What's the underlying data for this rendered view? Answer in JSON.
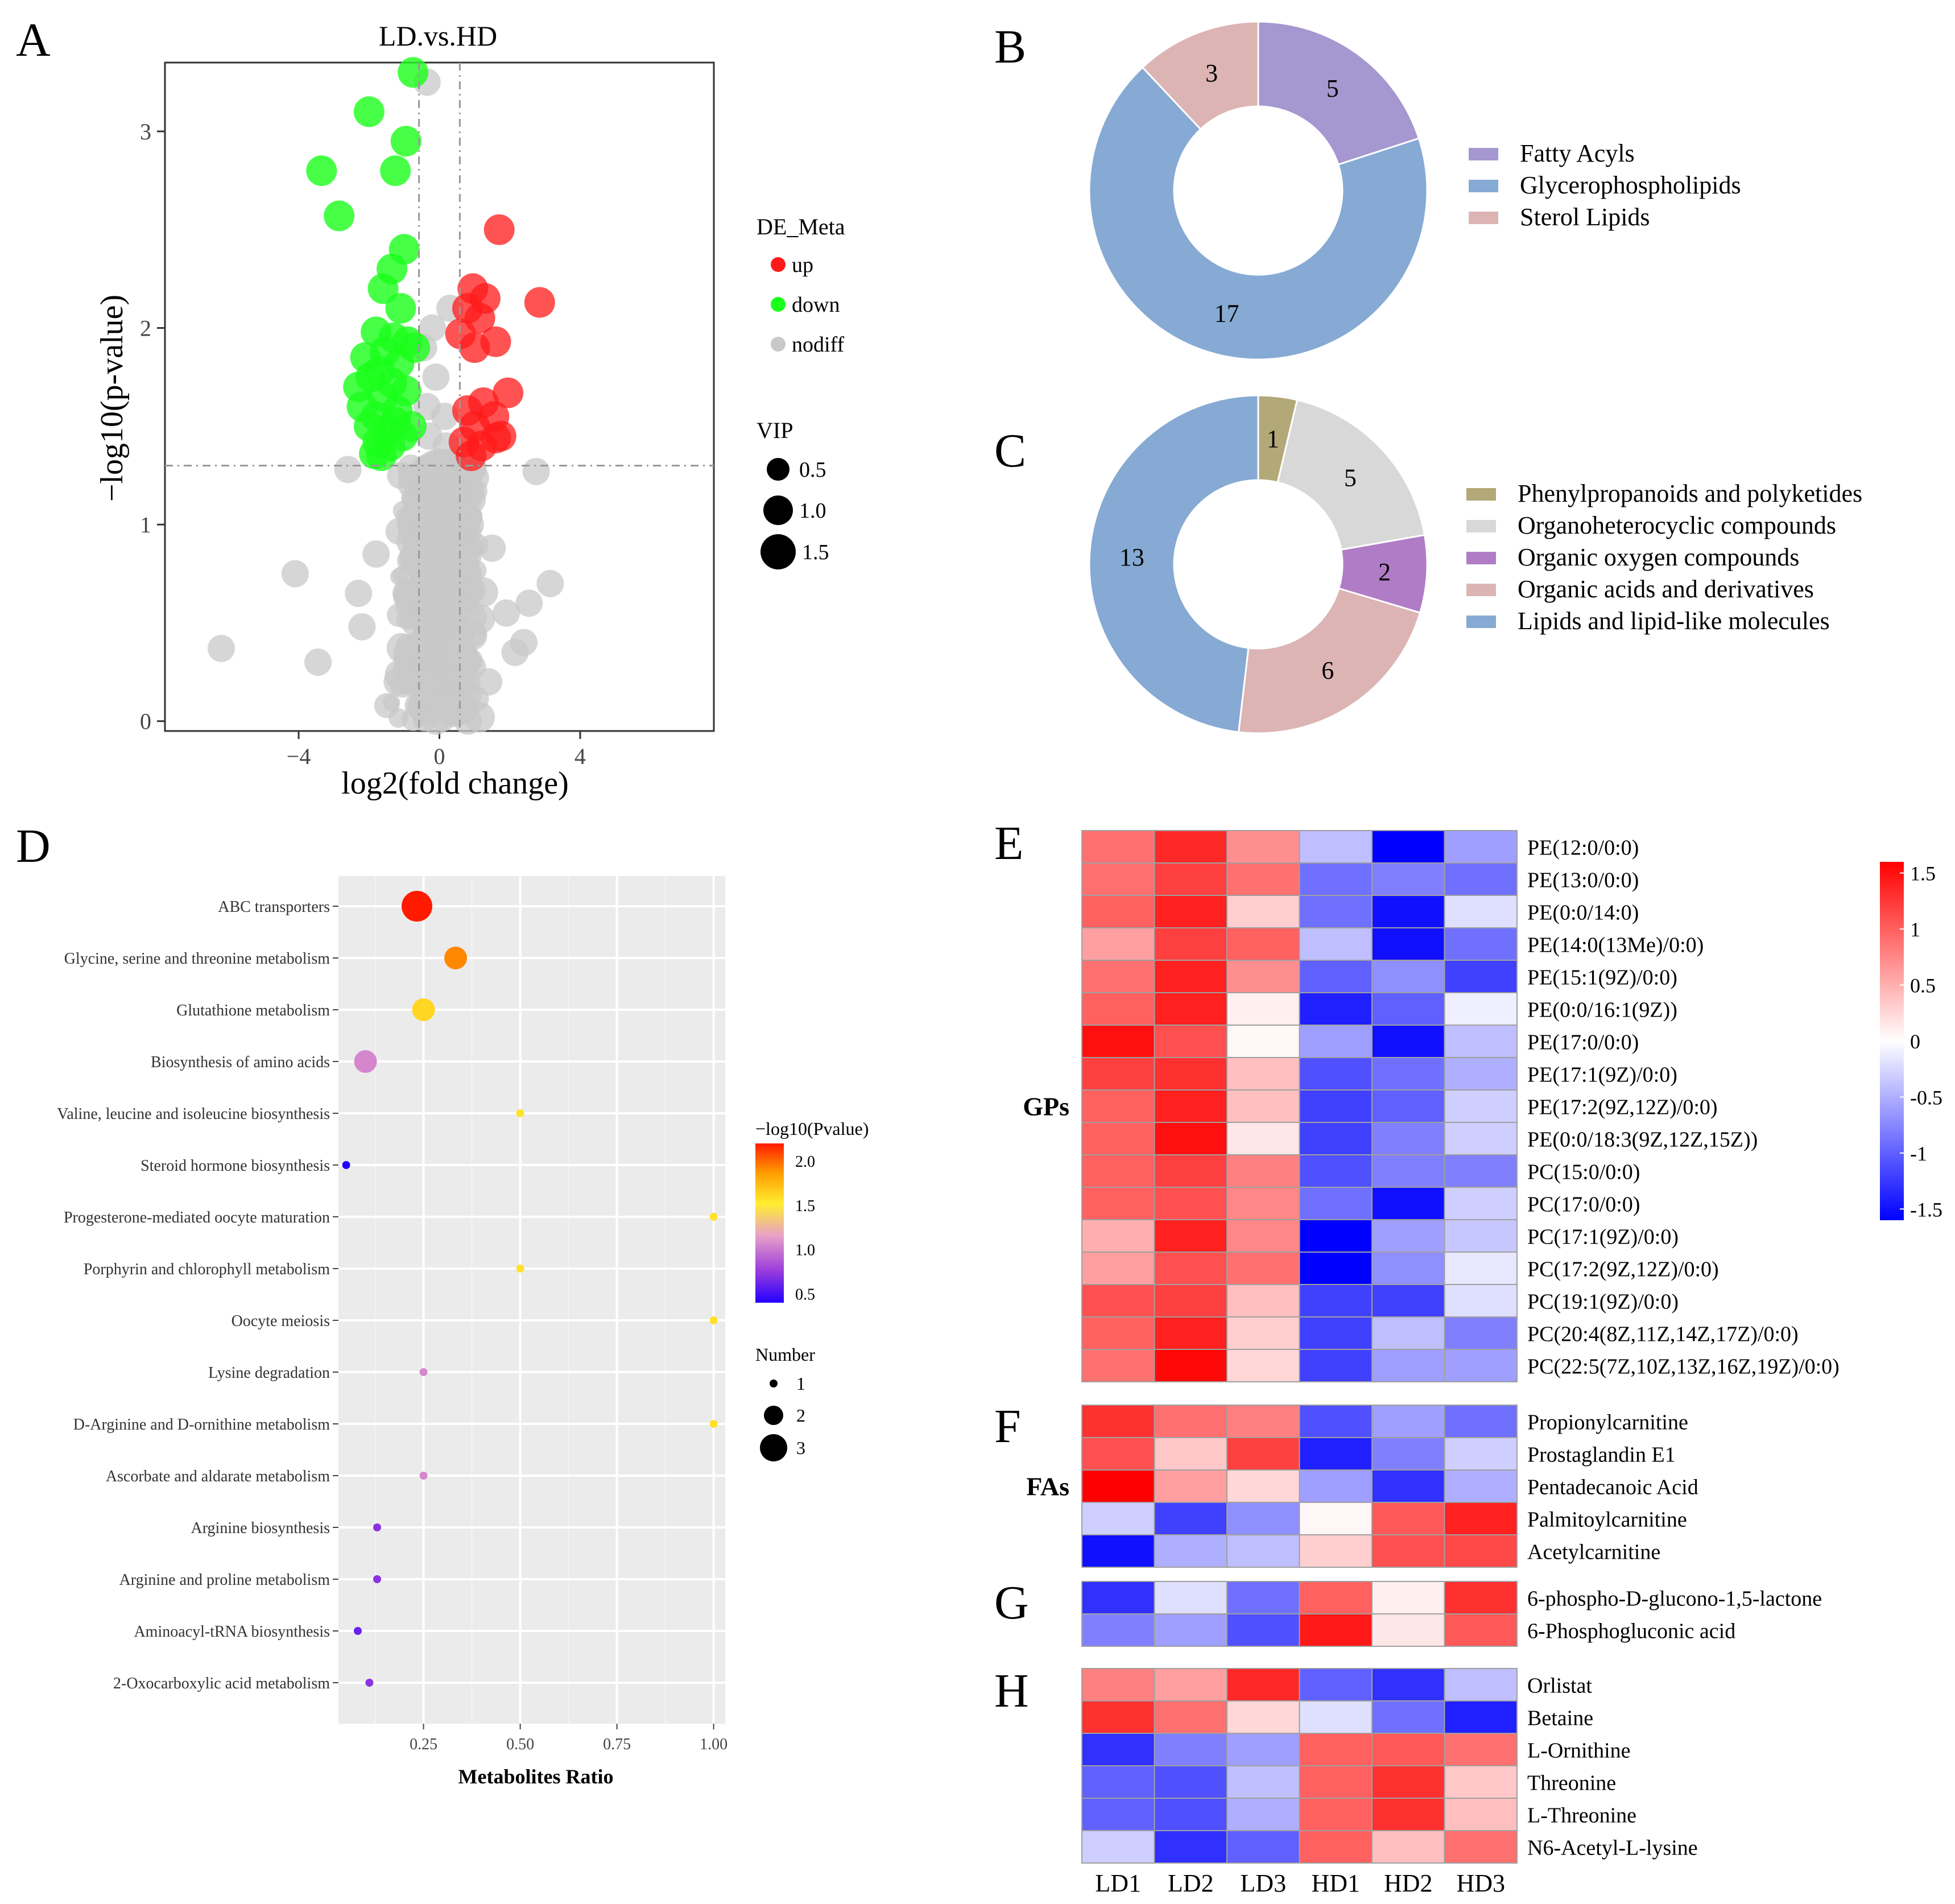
{
  "colors": {
    "up": "#ff1a1a",
    "down": "#1aff1a",
    "nodiff": "#c8c8c8",
    "fatty": "#a597cf",
    "glycero": "#86aad3",
    "sterol": "#dcb4b4",
    "phenyl": "#b3a878",
    "organohetero": "#d8d8d8",
    "oxygen": "#b07cc6",
    "acids": "#dcb4b4",
    "lipids": "#86aad3"
  },
  "panel_labels": [
    "A",
    "B",
    "C",
    "D",
    "E",
    "F",
    "G",
    "H"
  ],
  "chart_data": [
    {
      "id": "A",
      "type": "scatter",
      "title": "LD.vs.HD",
      "xlabel": "log2(fold change)",
      "ylabel": "−log10(p-value)",
      "xlim": [
        -7.8,
        7.8
      ],
      "ylim": [
        -0.05,
        3.35
      ],
      "xticks": [
        -4,
        0,
        4
      ],
      "xtick_labels": [
        "−4",
        "0",
        "4"
      ],
      "yticks": [
        0,
        1,
        2,
        3
      ],
      "ytick_labels": [
        "0",
        "1",
        "2",
        "3"
      ],
      "threshold_x": [
        -0.58,
        0.58
      ],
      "threshold_y": 1.3,
      "legend_title": "DE_Meta",
      "legend": [
        "up",
        "down",
        "nodiff"
      ],
      "size_title": "VIP",
      "size_labels": [
        "0.5",
        "1.0",
        "1.5"
      ],
      "down_points": [
        [
          -0.75,
          3.3
        ],
        [
          -2.0,
          3.1
        ],
        [
          -0.95,
          2.95
        ],
        [
          -3.35,
          2.8
        ],
        [
          -1.25,
          2.8
        ],
        [
          -2.85,
          2.57
        ],
        [
          -1.0,
          2.4
        ],
        [
          -1.35,
          2.3
        ],
        [
          -1.6,
          2.2
        ],
        [
          -1.1,
          2.1
        ],
        [
          -1.8,
          1.98
        ],
        [
          -1.3,
          1.95
        ],
        [
          -0.9,
          1.93
        ],
        [
          -1.55,
          1.88
        ],
        [
          -2.1,
          1.85
        ],
        [
          -1.15,
          1.82
        ],
        [
          -1.7,
          1.78
        ],
        [
          -1.95,
          1.75
        ],
        [
          -1.35,
          1.72
        ],
        [
          -0.95,
          1.68
        ],
        [
          -1.6,
          1.65
        ],
        [
          -2.2,
          1.6
        ],
        [
          -1.2,
          1.58
        ],
        [
          -1.8,
          1.55
        ],
        [
          -2.0,
          1.5
        ],
        [
          -1.5,
          1.48
        ],
        [
          -1.05,
          1.45
        ],
        [
          -1.75,
          1.42
        ],
        [
          -1.4,
          1.4
        ],
        [
          -1.85,
          1.36
        ],
        [
          -0.8,
          1.5
        ],
        [
          -0.7,
          1.9
        ],
        [
          -2.3,
          1.7
        ],
        [
          -1.65,
          1.35
        ],
        [
          -1.25,
          1.52
        ]
      ],
      "up_points": [
        [
          1.7,
          2.5
        ],
        [
          2.85,
          2.13
        ],
        [
          0.95,
          2.2
        ],
        [
          1.3,
          2.15
        ],
        [
          0.8,
          2.1
        ],
        [
          1.15,
          2.05
        ],
        [
          1.6,
          1.93
        ],
        [
          0.6,
          1.97
        ],
        [
          1.0,
          1.9
        ],
        [
          1.95,
          1.67
        ],
        [
          1.25,
          1.62
        ],
        [
          0.8,
          1.58
        ],
        [
          1.55,
          1.55
        ],
        [
          1.0,
          1.5
        ],
        [
          1.75,
          1.45
        ],
        [
          0.7,
          1.42
        ],
        [
          1.2,
          1.4
        ],
        [
          0.9,
          1.35
        ],
        [
          1.6,
          1.44
        ]
      ],
      "nodiff_points": [
        [
          -0.35,
          3.25
        ],
        [
          -0.2,
          2.0
        ],
        [
          -0.45,
          1.9
        ],
        [
          0.3,
          2.1
        ],
        [
          -0.35,
          1.6
        ],
        [
          -0.1,
          1.75
        ],
        [
          0.15,
          1.55
        ],
        [
          -0.3,
          1.45
        ],
        [
          0.2,
          1.4
        ],
        [
          -2.6,
          1.28
        ],
        [
          -1.1,
          1.25
        ],
        [
          0.9,
          1.27
        ],
        [
          2.75,
          1.27
        ],
        [
          -4.1,
          0.75
        ],
        [
          3.15,
          0.7
        ],
        [
          -6.2,
          0.37
        ],
        [
          -3.45,
          0.3
        ],
        [
          2.4,
          0.4
        ],
        [
          2.15,
          0.35
        ],
        [
          -2.2,
          0.48
        ],
        [
          1.9,
          0.55
        ],
        [
          -2.3,
          0.65
        ],
        [
          -1.8,
          0.85
        ],
        [
          1.5,
          0.88
        ],
        [
          2.55,
          0.6
        ],
        [
          1.4,
          0.2
        ],
        [
          -1.2,
          0.2
        ],
        [
          0.6,
          0.05
        ],
        [
          -0.6,
          0.08
        ]
      ]
    },
    {
      "id": "B",
      "type": "pie",
      "labels": [
        "Fatty Acyls",
        "Glycerophospholipids",
        "Sterol Lipids"
      ],
      "values": [
        5,
        17,
        3
      ]
    },
    {
      "id": "C",
      "type": "pie",
      "labels": [
        "Phenylpropanoids and polyketides",
        "Organoheterocyclic compounds",
        "Organic oxygen compounds",
        "Organic acids and derivatives",
        "Lipids and lipid-like molecules"
      ],
      "values": [
        1,
        5,
        2,
        6,
        13
      ]
    },
    {
      "id": "D",
      "type": "scatter",
      "xlabel": "Metabolites Ratio",
      "xlim": [
        0.03,
        1.03
      ],
      "xticks": [
        0.25,
        0.5,
        0.75,
        1.0
      ],
      "xtick_labels": [
        "0.25",
        "0.50",
        "0.75",
        "1.00"
      ],
      "color_title": "−log10(Pvalue)",
      "color_labels": [
        "2.0",
        "1.5",
        "1.0",
        "0.5"
      ],
      "color_range": [
        0.4,
        2.2
      ],
      "size_title": "Number",
      "size_labels": [
        "1",
        "2",
        "3"
      ],
      "pathways": [
        "ABC transporters",
        "Glycine, serine and threonine metabolism",
        "Glutathione metabolism",
        "Biosynthesis of amino acids",
        "Valine, leucine and isoleucine biosynthesis",
        "Steroid hormone biosynthesis",
        "Progesterone-mediated oocyte maturation",
        "Porphyrin and chlorophyll metabolism",
        "Oocyte meiosis",
        "Lysine degradation",
        "D-Arginine and D-ornithine metabolism",
        "Ascorbate and aldarate metabolism",
        "Arginine biosynthesis",
        "Arginine and proline metabolism",
        "Aminoacyl-tRNA biosynthesis",
        "2-Oxocarboxylic acid metabolism"
      ],
      "ratio": [
        0.233,
        0.333,
        0.25,
        0.1,
        0.5,
        0.05,
        1.0,
        0.5,
        1.0,
        0.25,
        1.0,
        0.25,
        0.13,
        0.13,
        0.08,
        0.11
      ],
      "neglog10p": [
        2.2,
        1.9,
        1.6,
        1.05,
        1.55,
        0.4,
        1.55,
        1.55,
        1.55,
        1.05,
        1.55,
        1.05,
        0.7,
        0.7,
        0.6,
        0.7
      ],
      "number": [
        3,
        2,
        2,
        2,
        1,
        1,
        1,
        1,
        1,
        1,
        1,
        1,
        1,
        1,
        1,
        1
      ]
    },
    {
      "id": "EFGH",
      "type": "heatmap",
      "columns": [
        "LD1",
        "LD2",
        "LD3",
        "HD1",
        "HD2",
        "HD3"
      ],
      "color_range": [
        -1.6,
        1.6
      ],
      "colorbar_ticks": [
        1.5,
        1,
        0.5,
        0,
        -0.5,
        -1,
        -1.5
      ],
      "colorbar_labels": [
        "1.5",
        "1",
        "0.5",
        "0",
        "-0.5",
        "-1",
        "-1.5"
      ],
      "groups": [
        {
          "panel": "E",
          "label": "GPs",
          "rows": [
            "PE(12:0/0:0)",
            "PE(13:0/0:0)",
            "PE(0:0/14:0)",
            "PE(14:0(13Me)/0:0)",
            "PE(15:1(9Z)/0:0)",
            "PE(0:0/16:1(9Z))",
            "PE(17:0/0:0)",
            "PE(17:1(9Z)/0:0)",
            "PE(17:2(9Z,12Z)/0:0)",
            "PE(0:0/18:3(9Z,12Z,15Z))",
            "PC(15:0/0:0)",
            "PC(17:0/0:0)",
            "PC(17:1(9Z)/0:0)",
            "PC(17:2(9Z,12Z)/0:0)",
            "PC(19:1(9Z)/0:0)",
            "PC(20:4(8Z,11Z,14Z,17Z)/0:0)",
            "PC(22:5(7Z,10Z,13Z,16Z,19Z)/0:0)"
          ],
          "values": [
            [
              0.9,
              1.35,
              0.7,
              -0.4,
              -1.6,
              -0.6
            ],
            [
              0.9,
              1.2,
              0.9,
              -0.9,
              -0.8,
              -0.9
            ],
            [
              1.0,
              1.4,
              0.3,
              -0.9,
              -1.5,
              -0.2
            ],
            [
              0.6,
              1.2,
              1.0,
              -0.4,
              -1.5,
              -0.9
            ],
            [
              0.9,
              1.4,
              0.7,
              -1.0,
              -0.7,
              -1.2
            ],
            [
              1.0,
              1.4,
              0.1,
              -1.4,
              -1.0,
              -0.1
            ],
            [
              1.5,
              1.1,
              0.05,
              -0.6,
              -1.5,
              -0.4
            ],
            [
              1.2,
              1.3,
              0.4,
              -1.1,
              -0.9,
              -0.5
            ],
            [
              1.0,
              1.4,
              0.4,
              -1.2,
              -1.0,
              -0.3
            ],
            [
              1.0,
              1.5,
              0.15,
              -1.2,
              -0.8,
              -0.3
            ],
            [
              1.0,
              1.2,
              0.8,
              -1.1,
              -0.8,
              -0.8
            ],
            [
              1.0,
              1.1,
              0.75,
              -0.9,
              -1.5,
              -0.3
            ],
            [
              0.5,
              1.4,
              0.75,
              -1.6,
              -0.6,
              -0.35
            ],
            [
              0.6,
              1.1,
              0.9,
              -1.6,
              -0.7,
              -0.15
            ],
            [
              1.1,
              1.2,
              0.4,
              -1.2,
              -1.2,
              -0.2
            ],
            [
              1.0,
              1.4,
              0.3,
              -1.2,
              -0.4,
              -0.8
            ],
            [
              0.9,
              1.55,
              0.25,
              -1.2,
              -0.6,
              -0.6
            ]
          ]
        },
        {
          "panel": "F",
          "label": "FAs",
          "rows": [
            "Propionylcarnitine",
            "Prostaglandin E1",
            "Pentadecanoic Acid",
            "Palmitoylcarnitine",
            "Acetylcarnitine"
          ],
          "values": [
            [
              1.3,
              0.9,
              0.8,
              -1.1,
              -0.6,
              -0.9
            ],
            [
              1.1,
              0.35,
              1.2,
              -1.4,
              -0.8,
              -0.3
            ],
            [
              1.6,
              0.6,
              0.25,
              -0.6,
              -1.3,
              -0.5
            ],
            [
              -0.3,
              -1.2,
              -0.7,
              0.05,
              1.05,
              1.4
            ],
            [
              -1.5,
              -0.5,
              -0.4,
              0.3,
              1.1,
              1.15
            ]
          ]
        },
        {
          "panel": "G",
          "label": "",
          "rows": [
            "6-phospho-D-glucono-1,5-lactone",
            "6-Phosphogluconic acid"
          ],
          "values": [
            [
              -1.3,
              -0.2,
              -0.9,
              1.0,
              0.1,
              1.3
            ],
            [
              -0.8,
              -0.6,
              -1.1,
              1.45,
              0.15,
              1.05
            ]
          ]
        },
        {
          "panel": "H",
          "label": "",
          "rows": [
            "Orlistat",
            "Betaine",
            "L-Ornithine",
            "Threonine",
            "L-Threonine",
            "N6-Acetyl-L-lysine"
          ],
          "values": [
            [
              0.8,
              0.6,
              1.35,
              -1.0,
              -1.3,
              -0.4
            ],
            [
              1.3,
              0.9,
              0.25,
              -0.2,
              -0.9,
              -1.4
            ],
            [
              -1.3,
              -0.8,
              -0.6,
              1.0,
              1.05,
              0.9
            ],
            [
              -1.0,
              -1.1,
              -0.4,
              1.0,
              1.3,
              0.35
            ],
            [
              -1.0,
              -1.1,
              -0.5,
              1.0,
              1.3,
              0.4
            ],
            [
              -0.3,
              -1.3,
              -1.0,
              1.0,
              0.4,
              0.9
            ]
          ]
        }
      ]
    }
  ]
}
